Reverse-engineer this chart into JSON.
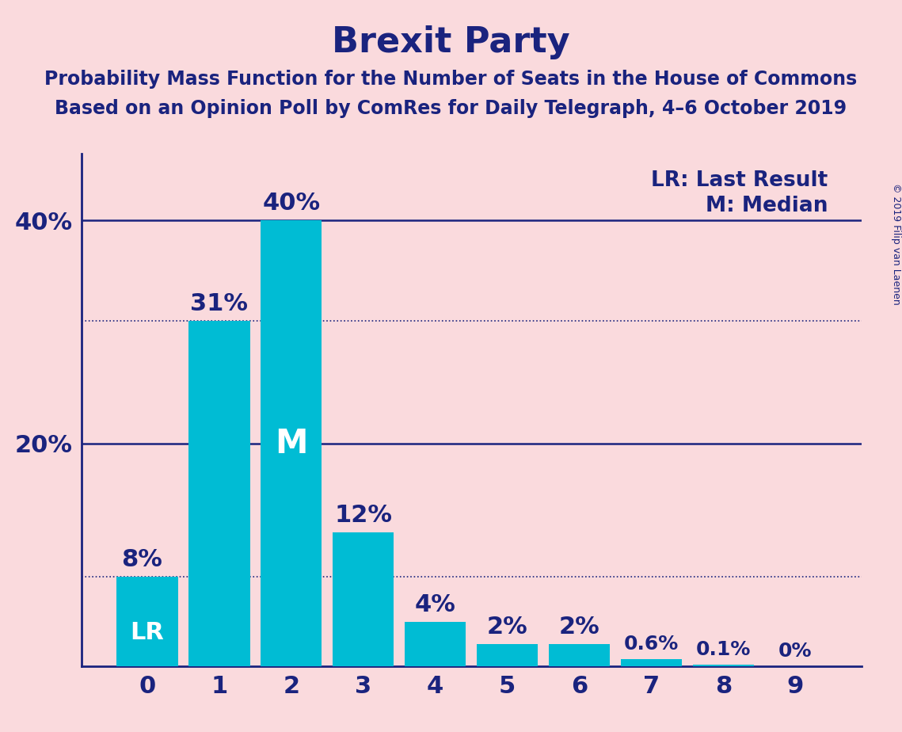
{
  "title": "Brexit Party",
  "subtitle1": "Probability Mass Function for the Number of Seats in the House of Commons",
  "subtitle2": "Based on an Opinion Poll by ComRes for Daily Telegraph, 4–6 October 2019",
  "copyright": "© 2019 Filip van Laenen",
  "categories": [
    0,
    1,
    2,
    3,
    4,
    5,
    6,
    7,
    8,
    9
  ],
  "values": [
    8,
    31,
    40,
    12,
    4,
    2,
    2,
    0.6,
    0.1,
    0
  ],
  "bar_color": "#00BCD4",
  "background_color": "#FADADD",
  "title_color": "#1a237e",
  "subtitle_color": "#1a237e",
  "bar_label_color_dark": "#1a237e",
  "bar_label_color_light": "#ffffff",
  "axis_color": "#1a237e",
  "solid_line_color": "#1a237e",
  "dotted_line_color": "#1a237e",
  "solid_hlines": [
    20,
    40
  ],
  "dotted_hlines": [
    8,
    31
  ],
  "lr_bar": 0,
  "median_bar": 2,
  "legend_lr": "LR: Last Result",
  "legend_m": "M: Median",
  "bar_labels": [
    "8%",
    "31%",
    "40%",
    "12%",
    "4%",
    "2%",
    "2%",
    "0.6%",
    "0.1%",
    "0%"
  ],
  "ylim": [
    0,
    46
  ],
  "title_fontsize": 32,
  "subtitle_fontsize": 17,
  "tick_fontsize": 22,
  "label_fontsize_large": 22,
  "label_fontsize_small": 18,
  "legend_fontsize": 19
}
